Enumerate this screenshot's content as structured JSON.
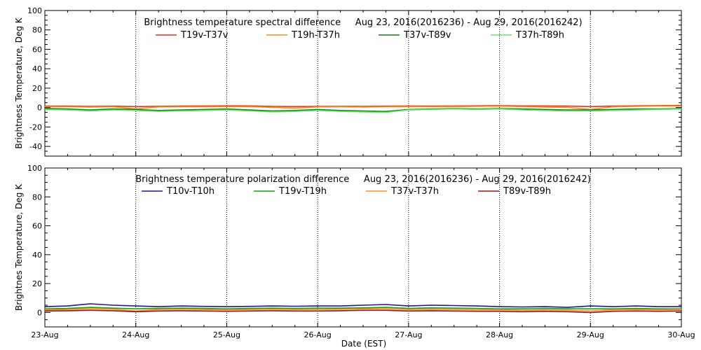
{
  "xaxis": {
    "title": "Date (EST)",
    "tick_labels": [
      "23-Aug",
      "24-Aug",
      "25-Aug",
      "26-Aug",
      "27-Aug",
      "28-Aug",
      "29-Aug",
      "30-Aug"
    ],
    "range_days": [
      0,
      7
    ]
  },
  "chart_data": [
    {
      "type": "line",
      "title": "Brightness temperature spectral difference     Aug 23, 2016(2016236) - Aug 29, 2016(2016242)",
      "xlabel": "",
      "ylabel": "Brightness Temperature, Deg K",
      "ylim": [
        -50,
        100
      ],
      "yticks": [
        -40,
        -20,
        0,
        20,
        40,
        60,
        80,
        100
      ],
      "grid": "vertical dotted lines at each day",
      "legend_placement": "top",
      "x": [
        0,
        0.25,
        0.5,
        0.75,
        1.0,
        1.25,
        1.5,
        1.75,
        2.0,
        2.25,
        2.5,
        2.75,
        3.0,
        3.25,
        3.5,
        3.75,
        4.0,
        4.25,
        4.5,
        4.75,
        5.0,
        5.25,
        5.5,
        5.75,
        6.0,
        6.25,
        6.5,
        6.75,
        7.0
      ],
      "series": [
        {
          "name": "T19v-T37v",
          "color": "#e8321a",
          "values": [
            1.5,
            1.5,
            1.2,
            1.4,
            1.0,
            1.3,
            1.5,
            1.6,
            1.8,
            1.7,
            1.2,
            1.0,
            1.2,
            1.3,
            1.2,
            1.4,
            1.6,
            1.5,
            1.6,
            1.8,
            2.0,
            1.7,
            1.6,
            1.5,
            1.0,
            1.5,
            1.8,
            2.0,
            2.2
          ]
        },
        {
          "name": "T19h-T37h",
          "color": "#ff8c1a",
          "values": [
            1.0,
            0.8,
            0.5,
            0.8,
            -1.5,
            0.6,
            0.8,
            0.8,
            1.0,
            0.9,
            0.2,
            -0.5,
            0.6,
            0.8,
            0.5,
            0.8,
            1.0,
            0.9,
            1.0,
            1.2,
            1.4,
            1.0,
            0.4,
            0.2,
            -2.0,
            0.8,
            1.2,
            1.5,
            1.5
          ]
        },
        {
          "name": "T37v-T89v",
          "color": "#1a7a1a",
          "values": [
            -1.0,
            -1.5,
            -2.5,
            -1.5,
            -2.0,
            -3.0,
            -2.5,
            -2.0,
            -1.5,
            -2.5,
            -3.5,
            -3.0,
            -2.0,
            -3.0,
            -3.5,
            -4.0,
            -2.0,
            -1.5,
            -1.0,
            -1.5,
            -1.0,
            -1.5,
            -2.0,
            -2.5,
            -2.5,
            -2.0,
            -1.5,
            -1.5,
            -1.0
          ]
        },
        {
          "name": "T37h-T89h",
          "color": "#66e866",
          "values": [
            -2.0,
            -2.5,
            -3.5,
            -2.5,
            -3.0,
            -4.0,
            -3.5,
            -3.0,
            -2.5,
            -3.5,
            -4.5,
            -4.0,
            -3.0,
            -4.0,
            -4.5,
            -5.0,
            -2.5,
            -2.0,
            -1.5,
            -2.0,
            -1.5,
            -2.5,
            -3.0,
            -3.5,
            -3.5,
            -3.0,
            -2.5,
            -2.0,
            -1.5
          ]
        }
      ]
    },
    {
      "type": "line",
      "title": "Brightness temperature polarization difference     Aug 23, 2016(2016236) - Aug 29, 2016(2016242)",
      "xlabel": "Date (EST)",
      "ylabel": "Brightnes Temperature, Deg K",
      "ylim": [
        -10,
        100
      ],
      "yticks": [
        0,
        20,
        40,
        60,
        80,
        100
      ],
      "grid": "vertical dotted lines at each day",
      "legend_placement": "top",
      "x": [
        0,
        0.25,
        0.5,
        0.75,
        1.0,
        1.25,
        1.5,
        1.75,
        2.0,
        2.25,
        2.5,
        2.75,
        3.0,
        3.25,
        3.5,
        3.75,
        4.0,
        4.25,
        4.5,
        4.75,
        5.0,
        5.25,
        5.5,
        5.75,
        6.0,
        6.25,
        6.5,
        6.75,
        7.0
      ],
      "series": [
        {
          "name": "T10v-T10h",
          "color": "#1a1a8c",
          "values": [
            4.0,
            4.5,
            6.0,
            5.0,
            4.5,
            4.0,
            4.5,
            4.2,
            4.0,
            4.2,
            4.5,
            4.3,
            4.5,
            4.5,
            5.0,
            5.5,
            4.5,
            5.0,
            4.8,
            4.5,
            4.0,
            3.8,
            4.0,
            3.5,
            4.5,
            4.0,
            4.5,
            4.0,
            4.0
          ]
        },
        {
          "name": "T19v-T19h",
          "color": "#1a9c1a",
          "values": [
            2.5,
            2.8,
            3.5,
            3.0,
            2.5,
            2.8,
            3.0,
            2.8,
            2.5,
            2.8,
            3.0,
            2.8,
            3.0,
            3.0,
            3.2,
            3.5,
            2.8,
            3.2,
            3.0,
            2.8,
            2.5,
            2.5,
            2.8,
            2.5,
            2.5,
            2.5,
            2.8,
            2.5,
            2.5
          ]
        },
        {
          "name": "T37v-T37h",
          "color": "#ff8c1a",
          "values": [
            1.8,
            2.0,
            2.5,
            2.2,
            1.0,
            2.0,
            2.2,
            2.0,
            1.8,
            2.0,
            2.2,
            2.0,
            2.0,
            2.2,
            2.5,
            2.5,
            2.0,
            2.2,
            2.0,
            1.8,
            1.8,
            1.5,
            1.8,
            1.5,
            1.0,
            1.8,
            2.0,
            1.8,
            2.0
          ]
        },
        {
          "name": "T89v-T89h",
          "color": "#8c1a1a",
          "values": [
            1.0,
            1.2,
            1.5,
            1.2,
            0.5,
            1.0,
            1.2,
            1.0,
            0.8,
            1.0,
            1.2,
            1.0,
            1.0,
            1.2,
            1.5,
            1.5,
            1.0,
            1.2,
            1.0,
            0.8,
            0.8,
            0.5,
            0.8,
            0.5,
            0.0,
            0.8,
            1.0,
            0.8,
            1.0
          ]
        }
      ]
    }
  ]
}
